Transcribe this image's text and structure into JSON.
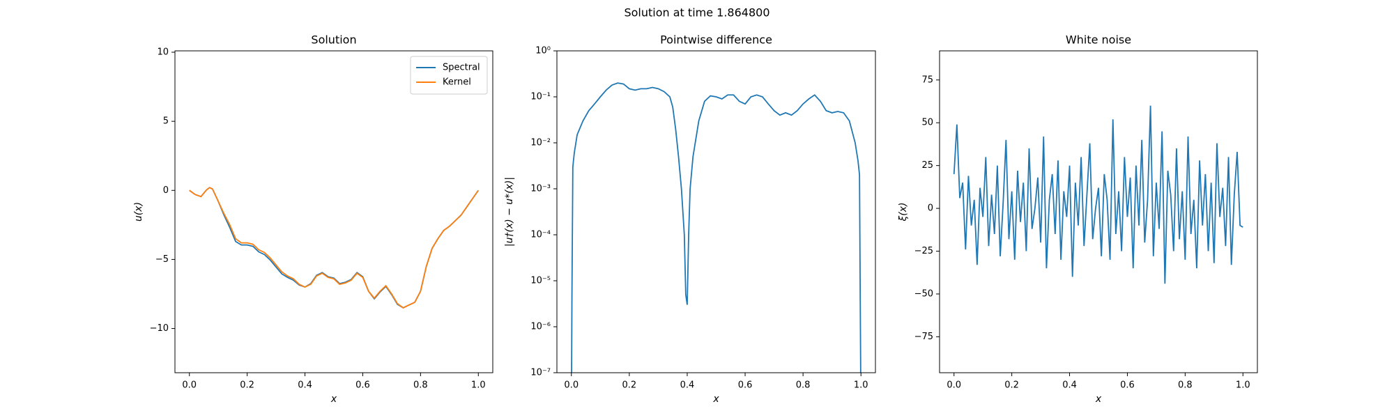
{
  "title": "Solution at time 1.864800",
  "chart_data": [
    {
      "type": "line",
      "title": "Solution",
      "xlabel": "x",
      "ylabel": "u(x)",
      "xlim": [
        -0.05,
        1.05
      ],
      "ylim": [
        -13.2,
        10.1
      ],
      "xticks": [
        {
          "value": 0,
          "label": "0.0"
        },
        {
          "value": 0.2,
          "label": "0.2"
        },
        {
          "value": 0.4,
          "label": "0.4"
        },
        {
          "value": 0.6,
          "label": "0.6"
        },
        {
          "value": 0.8,
          "label": "0.8"
        },
        {
          "value": 1,
          "label": "1.0"
        }
      ],
      "yticks": [
        {
          "value": -10,
          "label": "−10"
        },
        {
          "value": -5,
          "label": "−5"
        },
        0,
        5,
        10
      ],
      "legend": "upper right",
      "x": [
        0,
        0.02,
        0.04,
        0.06,
        0.07,
        0.08,
        0.1,
        0.12,
        0.14,
        0.16,
        0.18,
        0.2,
        0.22,
        0.24,
        0.26,
        0.28,
        0.3,
        0.32,
        0.34,
        0.36,
        0.38,
        0.4,
        0.42,
        0.44,
        0.46,
        0.48,
        0.5,
        0.52,
        0.54,
        0.56,
        0.58,
        0.6,
        0.62,
        0.64,
        0.66,
        0.68,
        0.7,
        0.72,
        0.74,
        0.76,
        0.78,
        0.8,
        0.82,
        0.84,
        0.86,
        0.88,
        0.9,
        0.92,
        0.94,
        0.96,
        0.98,
        1.0
      ],
      "series": [
        {
          "name": "Spectral",
          "color": "#1f77b4",
          "values": [
            0,
            -0.3,
            -0.45,
            0.05,
            0.2,
            0.1,
            -0.8,
            -1.8,
            -2.7,
            -3.7,
            -3.95,
            -3.95,
            -4.05,
            -4.45,
            -4.65,
            -5.05,
            -5.55,
            -6.05,
            -6.3,
            -6.5,
            -6.85,
            -7.0,
            -6.75,
            -6.15,
            -5.95,
            -6.25,
            -6.35,
            -6.75,
            -6.65,
            -6.45,
            -5.95,
            -6.25,
            -7.3,
            -7.85,
            -7.35,
            -6.95,
            -7.55,
            -8.25,
            -8.5,
            -8.3,
            -8.1,
            -7.3,
            -5.5,
            -4.2,
            -3.5,
            -2.9,
            -2.6,
            -2.2,
            -1.8,
            -1.2,
            -0.6,
            0
          ]
        },
        {
          "name": "Kernel",
          "color": "#ff7f0e",
          "values": [
            0,
            -0.3,
            -0.45,
            0.05,
            0.2,
            0.1,
            -0.8,
            -1.7,
            -2.5,
            -3.5,
            -3.8,
            -3.8,
            -3.9,
            -4.3,
            -4.5,
            -4.9,
            -5.4,
            -5.9,
            -6.2,
            -6.4,
            -6.8,
            -7.0,
            -6.8,
            -6.2,
            -6.0,
            -6.3,
            -6.4,
            -6.8,
            -6.7,
            -6.5,
            -6.0,
            -6.3,
            -7.3,
            -7.8,
            -7.3,
            -6.9,
            -7.5,
            -8.2,
            -8.5,
            -8.3,
            -8.1,
            -7.3,
            -5.5,
            -4.2,
            -3.5,
            -2.9,
            -2.6,
            -2.2,
            -1.8,
            -1.2,
            -0.6,
            0
          ]
        }
      ]
    },
    {
      "type": "line",
      "title": "Pointwise difference",
      "xlabel": "x",
      "ylabel": "|u†(x) − u*(x)|",
      "yscale": "log",
      "xlim": [
        -0.05,
        1.05
      ],
      "ylim": [
        1e-07,
        1
      ],
      "xticks": [
        {
          "value": 0,
          "label": "0.0"
        },
        {
          "value": 0.2,
          "label": "0.2"
        },
        {
          "value": 0.4,
          "label": "0.4"
        },
        {
          "value": 0.6,
          "label": "0.6"
        },
        {
          "value": 0.8,
          "label": "0.8"
        },
        {
          "value": 1,
          "label": "1.0"
        }
      ],
      "yticks": [
        {
          "value": 1e-07,
          "label": "10⁻⁷"
        },
        {
          "value": 1e-06,
          "label": "10⁻⁶"
        },
        {
          "value": 1e-05,
          "label": "10⁻⁵"
        },
        {
          "value": 0.0001,
          "label": "10⁻⁴"
        },
        {
          "value": 0.001,
          "label": "10⁻³"
        },
        {
          "value": 0.01,
          "label": "10⁻²"
        },
        {
          "value": 0.1,
          "label": "10⁻¹"
        },
        {
          "value": 1,
          "label": "10⁰"
        }
      ],
      "color": "#1f77b4",
      "x": [
        0,
        0.002,
        0.005,
        0.01,
        0.02,
        0.04,
        0.06,
        0.08,
        0.1,
        0.12,
        0.14,
        0.16,
        0.18,
        0.2,
        0.22,
        0.24,
        0.26,
        0.28,
        0.3,
        0.32,
        0.34,
        0.35,
        0.36,
        0.37,
        0.38,
        0.39,
        0.395,
        0.4,
        0.405,
        0.41,
        0.42,
        0.44,
        0.46,
        0.48,
        0.5,
        0.52,
        0.54,
        0.56,
        0.58,
        0.6,
        0.62,
        0.64,
        0.66,
        0.68,
        0.7,
        0.72,
        0.74,
        0.76,
        0.78,
        0.8,
        0.82,
        0.84,
        0.86,
        0.88,
        0.9,
        0.92,
        0.94,
        0.96,
        0.98,
        0.99,
        0.995,
        1.0
      ],
      "values": [
        1e-08,
        5e-06,
        0.003,
        0.006,
        0.015,
        0.03,
        0.05,
        0.07,
        0.1,
        0.14,
        0.18,
        0.2,
        0.19,
        0.15,
        0.14,
        0.15,
        0.15,
        0.16,
        0.15,
        0.13,
        0.1,
        0.06,
        0.02,
        0.005,
        0.001,
        0.0001,
        5e-06,
        3e-06,
        0.0001,
        0.001,
        0.005,
        0.03,
        0.08,
        0.105,
        0.1,
        0.09,
        0.11,
        0.11,
        0.08,
        0.07,
        0.1,
        0.11,
        0.1,
        0.07,
        0.05,
        0.04,
        0.045,
        0.04,
        0.05,
        0.07,
        0.09,
        0.11,
        0.08,
        0.05,
        0.045,
        0.048,
        0.045,
        0.03,
        0.01,
        0.004,
        0.002,
        1e-08
      ]
    },
    {
      "type": "line",
      "title": "White noise",
      "xlabel": "x",
      "ylabel": "ξ(x)",
      "xlim": [
        -0.05,
        1.05
      ],
      "ylim": [
        -96,
        92
      ],
      "xticks": [
        {
          "value": 0,
          "label": "0.0"
        },
        {
          "value": 0.2,
          "label": "0.2"
        },
        {
          "value": 0.4,
          "label": "0.4"
        },
        {
          "value": 0.6,
          "label": "0.6"
        },
        {
          "value": 0.8,
          "label": "0.8"
        },
        {
          "value": 1,
          "label": "1.0"
        }
      ],
      "yticks": [
        {
          "value": -75,
          "label": "−75"
        },
        {
          "value": -50,
          "label": "−50"
        },
        {
          "value": -25,
          "label": "−25"
        },
        0,
        25,
        50,
        75
      ],
      "color": "#1f77b4",
      "x": [
        0,
        0.01,
        0.02,
        0.03,
        0.04,
        0.05,
        0.06,
        0.07,
        0.08,
        0.09,
        0.1,
        0.11,
        0.12,
        0.13,
        0.14,
        0.15,
        0.16,
        0.17,
        0.18,
        0.19,
        0.2,
        0.21,
        0.22,
        0.23,
        0.24,
        0.25,
        0.26,
        0.27,
        0.28,
        0.29,
        0.3,
        0.31,
        0.32,
        0.33,
        0.34,
        0.35,
        0.36,
        0.37,
        0.38,
        0.39,
        0.4,
        0.41,
        0.42,
        0.43,
        0.44,
        0.45,
        0.46,
        0.47,
        0.48,
        0.49,
        0.5,
        0.51,
        0.52,
        0.53,
        0.54,
        0.55,
        0.56,
        0.57,
        0.58,
        0.59,
        0.6,
        0.61,
        0.62,
        0.63,
        0.64,
        0.65,
        0.66,
        0.67,
        0.68,
        0.69,
        0.7,
        0.71,
        0.72,
        0.73,
        0.74,
        0.75,
        0.76,
        0.77,
        0.78,
        0.79,
        0.8,
        0.81,
        0.82,
        0.83,
        0.84,
        0.85,
        0.86,
        0.87,
        0.88,
        0.89,
        0.9,
        0.91,
        0.92,
        0.93,
        0.94,
        0.95,
        0.96,
        0.97,
        0.98,
        0.99,
        1.0
      ],
      "values": [
        20,
        49,
        6,
        15,
        -24,
        19,
        -10,
        5,
        -33,
        12,
        -5,
        30,
        -22,
        8,
        -15,
        25,
        -28,
        3,
        40,
        -18,
        10,
        -30,
        22,
        -8,
        15,
        -25,
        35,
        -12,
        0,
        18,
        -20,
        42,
        -35,
        5,
        20,
        -15,
        28,
        -30,
        10,
        -5,
        25,
        -40,
        15,
        -10,
        30,
        -22,
        8,
        38,
        -18,
        0,
        12,
        -28,
        20,
        5,
        -30,
        52,
        -15,
        10,
        -25,
        30,
        -5,
        18,
        -35,
        25,
        -10,
        40,
        -20,
        5,
        60,
        -28,
        15,
        -12,
        45,
        -44,
        22,
        8,
        -25,
        35,
        -18,
        10,
        -30,
        42,
        -15,
        5,
        -35,
        28,
        -10,
        20,
        -25,
        15,
        -32,
        38,
        -5,
        12,
        -22,
        30,
        -33,
        8,
        33,
        -10,
        -11
      ]
    }
  ]
}
